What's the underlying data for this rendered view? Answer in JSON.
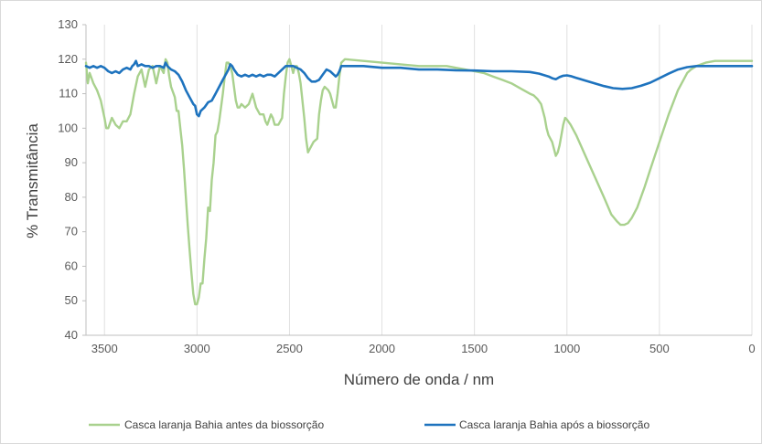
{
  "chart_data": {
    "type": "line",
    "title": "",
    "xlabel": "Número de onda / nm",
    "ylabel": "% Transmitância",
    "xlim": [
      3600,
      0
    ],
    "x_reversed": true,
    "ylim": [
      40,
      130
    ],
    "x_ticks": [
      3500,
      3000,
      2500,
      2000,
      1500,
      1000,
      500,
      0
    ],
    "y_ticks": [
      40,
      50,
      60,
      70,
      80,
      90,
      100,
      110,
      120,
      130
    ],
    "grid": {
      "vertical": true,
      "horizontal": false
    },
    "legend_position": "bottom",
    "series": [
      {
        "name": "Casca laranja Bahia antes da biossorção",
        "color": "#a9d18e",
        "points": [
          [
            3600,
            119
          ],
          [
            3590,
            113
          ],
          [
            3580,
            116
          ],
          [
            3560,
            113
          ],
          [
            3540,
            111
          ],
          [
            3520,
            108
          ],
          [
            3500,
            103
          ],
          [
            3490,
            100
          ],
          [
            3480,
            100
          ],
          [
            3460,
            103
          ],
          [
            3440,
            101
          ],
          [
            3420,
            100
          ],
          [
            3400,
            102
          ],
          [
            3380,
            102
          ],
          [
            3360,
            104
          ],
          [
            3340,
            110
          ],
          [
            3320,
            115
          ],
          [
            3300,
            117
          ],
          [
            3280,
            112
          ],
          [
            3260,
            117
          ],
          [
            3240,
            118
          ],
          [
            3220,
            113
          ],
          [
            3200,
            118
          ],
          [
            3180,
            116
          ],
          [
            3170,
            120
          ],
          [
            3160,
            119
          ],
          [
            3150,
            115
          ],
          [
            3140,
            112
          ],
          [
            3120,
            109
          ],
          [
            3110,
            105
          ],
          [
            3100,
            105
          ],
          [
            3090,
            100
          ],
          [
            3080,
            95
          ],
          [
            3070,
            88
          ],
          [
            3060,
            80
          ],
          [
            3050,
            72
          ],
          [
            3040,
            65
          ],
          [
            3030,
            58
          ],
          [
            3020,
            52
          ],
          [
            3010,
            49
          ],
          [
            3000,
            49
          ],
          [
            2990,
            51
          ],
          [
            2980,
            55
          ],
          [
            2970,
            55
          ],
          [
            2960,
            62
          ],
          [
            2950,
            68
          ],
          [
            2940,
            77
          ],
          [
            2930,
            76
          ],
          [
            2920,
            85
          ],
          [
            2910,
            90
          ],
          [
            2900,
            98
          ],
          [
            2890,
            99
          ],
          [
            2880,
            102
          ],
          [
            2870,
            106
          ],
          [
            2860,
            110
          ],
          [
            2850,
            115
          ],
          [
            2840,
            119
          ],
          [
            2830,
            119
          ],
          [
            2820,
            118
          ],
          [
            2810,
            116
          ],
          [
            2800,
            112
          ],
          [
            2790,
            108
          ],
          [
            2780,
            106
          ],
          [
            2770,
            106
          ],
          [
            2760,
            107
          ],
          [
            2740,
            106
          ],
          [
            2720,
            107
          ],
          [
            2700,
            110
          ],
          [
            2690,
            108
          ],
          [
            2680,
            106
          ],
          [
            2660,
            104
          ],
          [
            2640,
            104
          ],
          [
            2630,
            102
          ],
          [
            2620,
            101
          ],
          [
            2600,
            104
          ],
          [
            2590,
            103
          ],
          [
            2580,
            101
          ],
          [
            2560,
            101
          ],
          [
            2540,
            103
          ],
          [
            2530,
            110
          ],
          [
            2520,
            115
          ],
          [
            2510,
            119
          ],
          [
            2500,
            120
          ],
          [
            2490,
            118
          ],
          [
            2480,
            116
          ],
          [
            2470,
            118
          ],
          [
            2460,
            118
          ],
          [
            2450,
            116
          ],
          [
            2440,
            113
          ],
          [
            2430,
            108
          ],
          [
            2420,
            103
          ],
          [
            2410,
            97
          ],
          [
            2400,
            93
          ],
          [
            2390,
            94
          ],
          [
            2380,
            95
          ],
          [
            2370,
            96
          ],
          [
            2350,
            97
          ],
          [
            2340,
            104
          ],
          [
            2330,
            108
          ],
          [
            2320,
            111
          ],
          [
            2310,
            112
          ],
          [
            2290,
            111
          ],
          [
            2280,
            110
          ],
          [
            2260,
            106
          ],
          [
            2250,
            106
          ],
          [
            2240,
            110
          ],
          [
            2230,
            115
          ],
          [
            2220,
            119
          ],
          [
            2200,
            120
          ],
          [
            2100,
            119.5
          ],
          [
            2000,
            119
          ],
          [
            1900,
            118.5
          ],
          [
            1800,
            118
          ],
          [
            1700,
            118
          ],
          [
            1650,
            118
          ],
          [
            1600,
            117.5
          ],
          [
            1550,
            117
          ],
          [
            1500,
            116.5
          ],
          [
            1450,
            116
          ],
          [
            1400,
            115
          ],
          [
            1350,
            114
          ],
          [
            1300,
            113
          ],
          [
            1250,
            111.5
          ],
          [
            1200,
            110
          ],
          [
            1180,
            109.5
          ],
          [
            1160,
            108.5
          ],
          [
            1140,
            107
          ],
          [
            1130,
            105
          ],
          [
            1120,
            103
          ],
          [
            1110,
            100
          ],
          [
            1100,
            98
          ],
          [
            1090,
            97
          ],
          [
            1080,
            96
          ],
          [
            1070,
            94
          ],
          [
            1060,
            92
          ],
          [
            1050,
            93
          ],
          [
            1040,
            95
          ],
          [
            1030,
            98
          ],
          [
            1020,
            101
          ],
          [
            1010,
            103
          ],
          [
            1000,
            102.5
          ],
          [
            980,
            101
          ],
          [
            950,
            98
          ],
          [
            900,
            92
          ],
          [
            850,
            86
          ],
          [
            800,
            80
          ],
          [
            760,
            75
          ],
          [
            730,
            73
          ],
          [
            710,
            72
          ],
          [
            690,
            72
          ],
          [
            670,
            72.5
          ],
          [
            650,
            74
          ],
          [
            620,
            77
          ],
          [
            580,
            83
          ],
          [
            550,
            88
          ],
          [
            500,
            96
          ],
          [
            450,
            104
          ],
          [
            400,
            111
          ],
          [
            350,
            116
          ],
          [
            330,
            117
          ],
          [
            300,
            118
          ],
          [
            250,
            119
          ],
          [
            200,
            119.5
          ],
          [
            150,
            119.5
          ],
          [
            100,
            119.5
          ],
          [
            50,
            119.5
          ],
          [
            0,
            119.5
          ]
        ]
      },
      {
        "name": "Casca laranja Bahia após a biossorção",
        "color": "#1e73be",
        "points": [
          [
            3600,
            118
          ],
          [
            3580,
            117.5
          ],
          [
            3560,
            118
          ],
          [
            3540,
            117.5
          ],
          [
            3520,
            118
          ],
          [
            3500,
            117.5
          ],
          [
            3480,
            116.5
          ],
          [
            3460,
            116
          ],
          [
            3440,
            116.5
          ],
          [
            3420,
            116
          ],
          [
            3400,
            117
          ],
          [
            3380,
            117.5
          ],
          [
            3360,
            117
          ],
          [
            3350,
            118
          ],
          [
            3340,
            118.5
          ],
          [
            3330,
            119.5
          ],
          [
            3320,
            118
          ],
          [
            3300,
            118.5
          ],
          [
            3280,
            118
          ],
          [
            3260,
            118
          ],
          [
            3240,
            117.5
          ],
          [
            3220,
            118
          ],
          [
            3200,
            118
          ],
          [
            3180,
            117.5
          ],
          [
            3170,
            119
          ],
          [
            3160,
            118
          ],
          [
            3140,
            117
          ],
          [
            3120,
            116.5
          ],
          [
            3100,
            115.5
          ],
          [
            3080,
            113.5
          ],
          [
            3060,
            111
          ],
          [
            3040,
            109
          ],
          [
            3020,
            107
          ],
          [
            3010,
            106.5
          ],
          [
            3000,
            104
          ],
          [
            2990,
            103.5
          ],
          [
            2980,
            105
          ],
          [
            2960,
            106
          ],
          [
            2940,
            107.5
          ],
          [
            2920,
            108
          ],
          [
            2900,
            110
          ],
          [
            2880,
            112
          ],
          [
            2860,
            114
          ],
          [
            2840,
            116
          ],
          [
            2830,
            117
          ],
          [
            2820,
            118.5
          ],
          [
            2810,
            118
          ],
          [
            2800,
            117
          ],
          [
            2780,
            115.5
          ],
          [
            2760,
            115
          ],
          [
            2740,
            115.5
          ],
          [
            2720,
            115
          ],
          [
            2700,
            115.5
          ],
          [
            2680,
            115
          ],
          [
            2660,
            115.5
          ],
          [
            2640,
            115
          ],
          [
            2620,
            115.5
          ],
          [
            2600,
            115.5
          ],
          [
            2580,
            115
          ],
          [
            2560,
            116
          ],
          [
            2540,
            117
          ],
          [
            2520,
            118
          ],
          [
            2500,
            118
          ],
          [
            2480,
            118
          ],
          [
            2460,
            117.5
          ],
          [
            2440,
            117
          ],
          [
            2420,
            116
          ],
          [
            2400,
            114.5
          ],
          [
            2380,
            113.5
          ],
          [
            2360,
            113.5
          ],
          [
            2340,
            114
          ],
          [
            2320,
            115.5
          ],
          [
            2300,
            117
          ],
          [
            2280,
            116.5
          ],
          [
            2260,
            115.5
          ],
          [
            2250,
            115
          ],
          [
            2240,
            115.5
          ],
          [
            2230,
            116.5
          ],
          [
            2220,
            118
          ],
          [
            2200,
            118
          ],
          [
            2100,
            118
          ],
          [
            2000,
            117.5
          ],
          [
            1900,
            117.5
          ],
          [
            1800,
            117
          ],
          [
            1700,
            117
          ],
          [
            1600,
            116.8
          ],
          [
            1500,
            116.7
          ],
          [
            1400,
            116.5
          ],
          [
            1300,
            116.5
          ],
          [
            1200,
            116.3
          ],
          [
            1150,
            115.8
          ],
          [
            1100,
            115
          ],
          [
            1080,
            114.5
          ],
          [
            1060,
            114.2
          ],
          [
            1040,
            114.8
          ],
          [
            1020,
            115.2
          ],
          [
            1000,
            115.3
          ],
          [
            980,
            115.1
          ],
          [
            950,
            114.6
          ],
          [
            900,
            113.8
          ],
          [
            850,
            113
          ],
          [
            800,
            112.2
          ],
          [
            750,
            111.6
          ],
          [
            700,
            111.4
          ],
          [
            650,
            111.6
          ],
          [
            600,
            112.3
          ],
          [
            550,
            113.2
          ],
          [
            500,
            114.5
          ],
          [
            450,
            115.8
          ],
          [
            400,
            117
          ],
          [
            350,
            117.7
          ],
          [
            300,
            118
          ],
          [
            250,
            118
          ],
          [
            200,
            118
          ],
          [
            150,
            118
          ],
          [
            100,
            118
          ],
          [
            50,
            118
          ],
          [
            0,
            118
          ]
        ]
      }
    ]
  }
}
